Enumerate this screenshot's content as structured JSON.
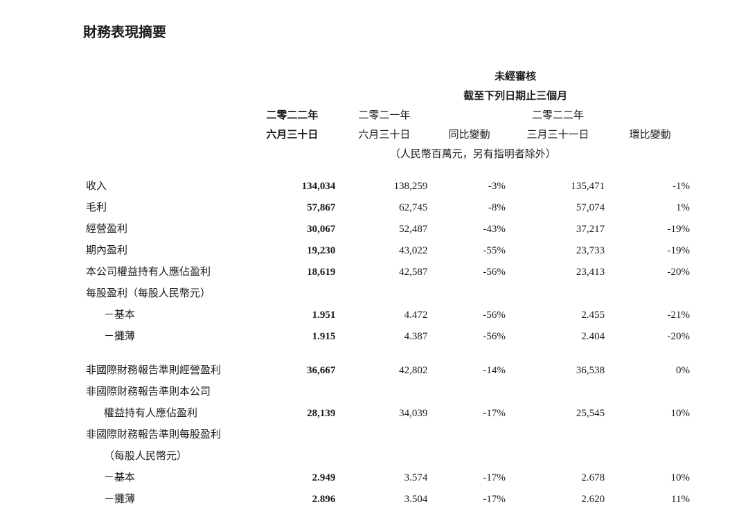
{
  "title": "財務表現摘要",
  "header": {
    "unaudited": "未經審核",
    "period": "截至下列日期止三個月",
    "year2022": "二零二二年",
    "year2021": "二零二一年",
    "jun30": "六月三十日",
    "mar31": "三月三十一日",
    "yoy_change": "同比變動",
    "qoq_change": "環比變動",
    "currency_note": "（人民幣百萬元，另有指明者除外）"
  },
  "rows": {
    "revenue": {
      "label": "收入",
      "c1": "134,034",
      "c2": "138,259",
      "c3": "-3%",
      "c4": "135,471",
      "c5": "-1%"
    },
    "gross_profit": {
      "label": "毛利",
      "c1": "57,867",
      "c2": "62,745",
      "c3": "-8%",
      "c4": "57,074",
      "c5": "1%"
    },
    "operating_profit": {
      "label": "經營盈利",
      "c1": "30,067",
      "c2": "52,487",
      "c3": "-43%",
      "c4": "37,217",
      "c5": "-19%"
    },
    "period_profit": {
      "label": "期內盈利",
      "c1": "19,230",
      "c2": "43,022",
      "c3": "-55%",
      "c4": "23,733",
      "c5": "-19%"
    },
    "equity_profit": {
      "label": "本公司權益持有人應佔盈利",
      "c1": "18,619",
      "c2": "42,587",
      "c3": "-56%",
      "c4": "23,413",
      "c5": "-20%"
    },
    "eps_header": {
      "label": "每股盈利（每股人民幣元）"
    },
    "eps_basic": {
      "label": "－基本",
      "c1": "1.951",
      "c2": "4.472",
      "c3": "-56%",
      "c4": "2.455",
      "c5": "-21%"
    },
    "eps_diluted": {
      "label": "－攤薄",
      "c1": "1.915",
      "c2": "4.387",
      "c3": "-56%",
      "c4": "2.404",
      "c5": "-20%"
    },
    "nonifrs_operating": {
      "label": "非國際財務報告準則經營盈利",
      "c1": "36,667",
      "c2": "42,802",
      "c3": "-14%",
      "c4": "36,538",
      "c5": "0%"
    },
    "nonifrs_company_header": {
      "label": "非國際財務報告準則本公司"
    },
    "nonifrs_company_sub": {
      "label": "權益持有人應佔盈利",
      "c1": "28,139",
      "c2": "34,039",
      "c3": "-17%",
      "c4": "25,545",
      "c5": "10%"
    },
    "nonifrs_eps_header": {
      "label": "非國際財務報告準則每股盈利"
    },
    "nonifrs_eps_sub": {
      "label": "（每股人民幣元）"
    },
    "nonifrs_basic": {
      "label": "－基本",
      "c1": "2.949",
      "c2": "3.574",
      "c3": "-17%",
      "c4": "2.678",
      "c5": "10%"
    },
    "nonifrs_diluted": {
      "label": "－攤薄",
      "c1": "2.896",
      "c2": "3.504",
      "c3": "-17%",
      "c4": "2.620",
      "c5": "11%"
    }
  }
}
